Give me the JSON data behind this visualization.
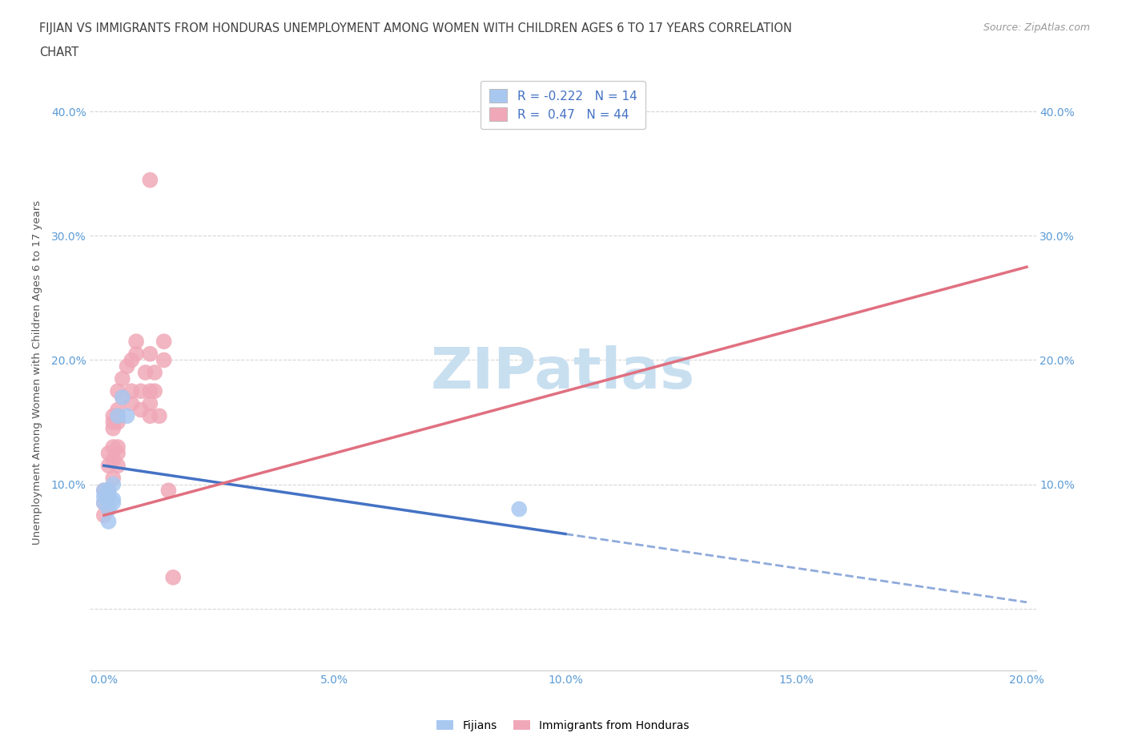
{
  "title_line1": "FIJIAN VS IMMIGRANTS FROM HONDURAS UNEMPLOYMENT AMONG WOMEN WITH CHILDREN AGES 6 TO 17 YEARS CORRELATION",
  "title_line2": "CHART",
  "source": "Source: ZipAtlas.com",
  "ylabel": "Unemployment Among Women with Children Ages 6 to 17 years",
  "watermark": "ZIPatlas",
  "fijian_x": [
    0.0,
    0.0,
    0.0,
    0.001,
    0.001,
    0.001,
    0.001,
    0.002,
    0.002,
    0.002,
    0.003,
    0.004,
    0.005,
    0.09
  ],
  "fijian_y": [
    0.085,
    0.09,
    0.095,
    0.07,
    0.08,
    0.09,
    0.095,
    0.085,
    0.088,
    0.1,
    0.155,
    0.17,
    0.155,
    0.08
  ],
  "honduras_x": [
    0.0,
    0.0,
    0.0,
    0.001,
    0.001,
    0.001,
    0.001,
    0.001,
    0.002,
    0.002,
    0.002,
    0.002,
    0.002,
    0.002,
    0.003,
    0.003,
    0.003,
    0.003,
    0.003,
    0.003,
    0.003,
    0.004,
    0.004,
    0.005,
    0.006,
    0.006,
    0.006,
    0.007,
    0.007,
    0.008,
    0.008,
    0.009,
    0.01,
    0.01,
    0.01,
    0.01,
    0.01,
    0.011,
    0.011,
    0.012,
    0.013,
    0.013,
    0.014,
    0.015
  ],
  "honduras_y": [
    0.075,
    0.085,
    0.095,
    0.08,
    0.09,
    0.095,
    0.115,
    0.125,
    0.105,
    0.12,
    0.13,
    0.145,
    0.15,
    0.155,
    0.115,
    0.125,
    0.13,
    0.15,
    0.155,
    0.16,
    0.175,
    0.17,
    0.185,
    0.195,
    0.165,
    0.175,
    0.2,
    0.205,
    0.215,
    0.16,
    0.175,
    0.19,
    0.155,
    0.165,
    0.175,
    0.205,
    0.345,
    0.175,
    0.19,
    0.155,
    0.2,
    0.215,
    0.095,
    0.025
  ],
  "fijian_R": -0.222,
  "fijian_N": 14,
  "honduras_R": 0.47,
  "honduras_N": 44,
  "fijian_color": "#a8c8f0",
  "honduras_color": "#f0a8b8",
  "fijian_line_color": "#4472c4",
  "honduras_line_color": "#e07080",
  "xlim": [
    -0.003,
    0.202
  ],
  "ylim": [
    -0.05,
    0.43
  ],
  "xticks": [
    0.0,
    0.05,
    0.1,
    0.15,
    0.2
  ],
  "xtick_labels": [
    "0.0%",
    "5.0%",
    "10.0%",
    "15.0%",
    "20.0%"
  ],
  "ytick_left_labels": [
    "",
    "10.0%",
    "20.0%",
    "30.0%",
    "40.0%"
  ],
  "ytick_right_labels": [
    "",
    "10.0%",
    "20.0%",
    "30.0%",
    "40.0%"
  ],
  "yticks": [
    0.0,
    0.1,
    0.2,
    0.3,
    0.4
  ],
  "background_color": "#ffffff",
  "grid_color": "#cccccc",
  "tick_label_color": "#5b9bd5",
  "title_color": "#404040",
  "watermark_color": "#c8dff0"
}
